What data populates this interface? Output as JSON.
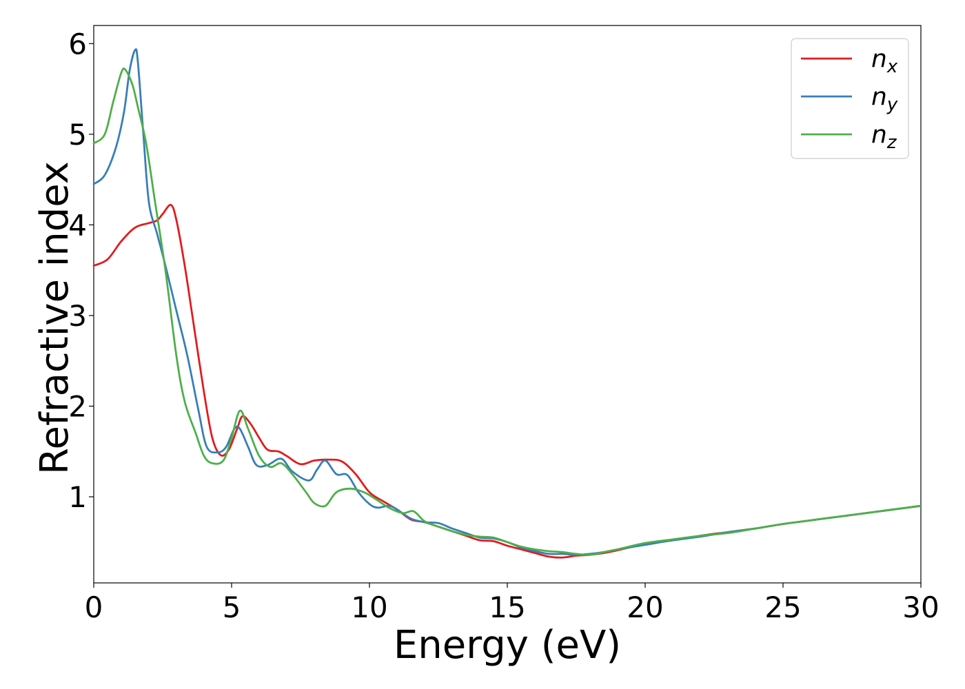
{
  "chart_data": {
    "type": "line",
    "title": "",
    "xlabel": "Energy (eV)",
    "ylabel": "Refractive index",
    "xlim": [
      0,
      30
    ],
    "ylim": [
      0.05,
      6.2
    ],
    "xticks": [
      0,
      5,
      10,
      15,
      20,
      25,
      30
    ],
    "yticks": [
      1,
      2,
      3,
      4,
      5,
      6
    ],
    "grid": false,
    "legend_position": "top-right",
    "series": [
      {
        "name": "n_x",
        "label_base": "n",
        "label_sub": "x",
        "color": "#e41a1c",
        "points": [
          [
            0,
            3.55
          ],
          [
            0.5,
            3.62
          ],
          [
            1,
            3.82
          ],
          [
            1.5,
            3.97
          ],
          [
            2,
            4.02
          ],
          [
            2.3,
            4.05
          ],
          [
            2.5,
            4.12
          ],
          [
            2.8,
            4.22
          ],
          [
            3.0,
            4.05
          ],
          [
            3.3,
            3.55
          ],
          [
            3.6,
            2.95
          ],
          [
            4.0,
            2.15
          ],
          [
            4.3,
            1.65
          ],
          [
            4.6,
            1.46
          ],
          [
            4.9,
            1.52
          ],
          [
            5.2,
            1.75
          ],
          [
            5.4,
            1.89
          ],
          [
            5.7,
            1.8
          ],
          [
            6.0,
            1.65
          ],
          [
            6.3,
            1.52
          ],
          [
            6.7,
            1.5
          ],
          [
            7.0,
            1.45
          ],
          [
            7.5,
            1.36
          ],
          [
            8.0,
            1.4
          ],
          [
            8.5,
            1.41
          ],
          [
            9.0,
            1.39
          ],
          [
            9.5,
            1.25
          ],
          [
            10.0,
            1.05
          ],
          [
            10.5,
            0.95
          ],
          [
            11.0,
            0.86
          ],
          [
            11.5,
            0.75
          ],
          [
            12.0,
            0.72
          ],
          [
            12.5,
            0.67
          ],
          [
            13.0,
            0.62
          ],
          [
            13.5,
            0.57
          ],
          [
            14.0,
            0.52
          ],
          [
            14.5,
            0.51
          ],
          [
            15.0,
            0.46
          ],
          [
            15.5,
            0.42
          ],
          [
            16.0,
            0.38
          ],
          [
            16.5,
            0.34
          ],
          [
            17.0,
            0.33
          ],
          [
            17.5,
            0.35
          ],
          [
            18.0,
            0.36
          ],
          [
            18.5,
            0.38
          ],
          [
            19.0,
            0.41
          ],
          [
            20.0,
            0.48
          ],
          [
            21.0,
            0.52
          ],
          [
            22.0,
            0.57
          ],
          [
            23.0,
            0.61
          ],
          [
            24.0,
            0.65
          ],
          [
            25.0,
            0.7
          ],
          [
            26.0,
            0.74
          ],
          [
            27.0,
            0.78
          ],
          [
            28.0,
            0.82
          ],
          [
            29.0,
            0.86
          ],
          [
            30.0,
            0.9
          ]
        ]
      },
      {
        "name": "n_y",
        "label_base": "n",
        "label_sub": "y",
        "color": "#377eb8",
        "points": [
          [
            0,
            4.45
          ],
          [
            0.4,
            4.55
          ],
          [
            0.8,
            4.85
          ],
          [
            1.1,
            5.25
          ],
          [
            1.3,
            5.7
          ],
          [
            1.5,
            5.93
          ],
          [
            1.6,
            5.8
          ],
          [
            1.8,
            5.0
          ],
          [
            2.0,
            4.25
          ],
          [
            2.3,
            3.9
          ],
          [
            2.6,
            3.55
          ],
          [
            3.0,
            3.05
          ],
          [
            3.4,
            2.55
          ],
          [
            3.8,
            1.95
          ],
          [
            4.1,
            1.55
          ],
          [
            4.5,
            1.49
          ],
          [
            4.8,
            1.55
          ],
          [
            5.1,
            1.75
          ],
          [
            5.3,
            1.75
          ],
          [
            5.6,
            1.55
          ],
          [
            5.9,
            1.35
          ],
          [
            6.3,
            1.35
          ],
          [
            6.8,
            1.42
          ],
          [
            7.2,
            1.28
          ],
          [
            7.8,
            1.18
          ],
          [
            8.1,
            1.3
          ],
          [
            8.4,
            1.4
          ],
          [
            8.8,
            1.25
          ],
          [
            9.2,
            1.24
          ],
          [
            9.6,
            1.05
          ],
          [
            10.0,
            0.92
          ],
          [
            10.3,
            0.88
          ],
          [
            10.7,
            0.9
          ],
          [
            11.0,
            0.86
          ],
          [
            11.5,
            0.76
          ],
          [
            12.0,
            0.72
          ],
          [
            12.5,
            0.71
          ],
          [
            13.0,
            0.65
          ],
          [
            13.5,
            0.6
          ],
          [
            14.0,
            0.55
          ],
          [
            14.5,
            0.54
          ],
          [
            15.0,
            0.5
          ],
          [
            15.5,
            0.44
          ],
          [
            16.0,
            0.4
          ],
          [
            16.5,
            0.37
          ],
          [
            17.0,
            0.37
          ],
          [
            17.5,
            0.36
          ],
          [
            18.0,
            0.37
          ],
          [
            18.5,
            0.39
          ],
          [
            19.0,
            0.42
          ],
          [
            20.0,
            0.47
          ],
          [
            21.0,
            0.52
          ],
          [
            22.0,
            0.56
          ],
          [
            23.0,
            0.61
          ],
          [
            24.0,
            0.65
          ],
          [
            25.0,
            0.7
          ],
          [
            26.0,
            0.74
          ],
          [
            27.0,
            0.78
          ],
          [
            28.0,
            0.82
          ],
          [
            29.0,
            0.86
          ],
          [
            30.0,
            0.9
          ]
        ]
      },
      {
        "name": "n_z",
        "label_base": "n",
        "label_sub": "z",
        "color": "#4daf4a",
        "points": [
          [
            0,
            4.9
          ],
          [
            0.4,
            5.0
          ],
          [
            0.7,
            5.35
          ],
          [
            1.0,
            5.68
          ],
          [
            1.15,
            5.71
          ],
          [
            1.4,
            5.55
          ],
          [
            1.6,
            5.3
          ],
          [
            1.9,
            4.9
          ],
          [
            2.2,
            4.3
          ],
          [
            2.6,
            3.5
          ],
          [
            3.0,
            2.55
          ],
          [
            3.3,
            2.05
          ],
          [
            3.7,
            1.7
          ],
          [
            4.0,
            1.45
          ],
          [
            4.3,
            1.37
          ],
          [
            4.7,
            1.4
          ],
          [
            5.0,
            1.65
          ],
          [
            5.3,
            1.95
          ],
          [
            5.6,
            1.75
          ],
          [
            6.0,
            1.45
          ],
          [
            6.4,
            1.33
          ],
          [
            6.8,
            1.37
          ],
          [
            7.2,
            1.25
          ],
          [
            7.7,
            1.05
          ],
          [
            8.0,
            0.93
          ],
          [
            8.4,
            0.9
          ],
          [
            8.8,
            1.05
          ],
          [
            9.3,
            1.09
          ],
          [
            9.8,
            1.05
          ],
          [
            10.2,
            0.98
          ],
          [
            10.7,
            0.88
          ],
          [
            11.2,
            0.82
          ],
          [
            11.6,
            0.84
          ],
          [
            12.0,
            0.73
          ],
          [
            12.5,
            0.67
          ],
          [
            13.0,
            0.62
          ],
          [
            13.5,
            0.58
          ],
          [
            14.0,
            0.56
          ],
          [
            14.5,
            0.55
          ],
          [
            15.0,
            0.5
          ],
          [
            15.5,
            0.45
          ],
          [
            16.0,
            0.42
          ],
          [
            16.5,
            0.4
          ],
          [
            17.0,
            0.39
          ],
          [
            17.5,
            0.37
          ],
          [
            18.0,
            0.36
          ],
          [
            18.5,
            0.39
          ],
          [
            19.0,
            0.42
          ],
          [
            20.0,
            0.49
          ],
          [
            21.0,
            0.53
          ],
          [
            22.0,
            0.57
          ],
          [
            23.0,
            0.6
          ],
          [
            24.0,
            0.65
          ],
          [
            25.0,
            0.7
          ],
          [
            26.0,
            0.74
          ],
          [
            27.0,
            0.78
          ],
          [
            28.0,
            0.82
          ],
          [
            29.0,
            0.86
          ],
          [
            30.0,
            0.9
          ]
        ]
      }
    ]
  }
}
